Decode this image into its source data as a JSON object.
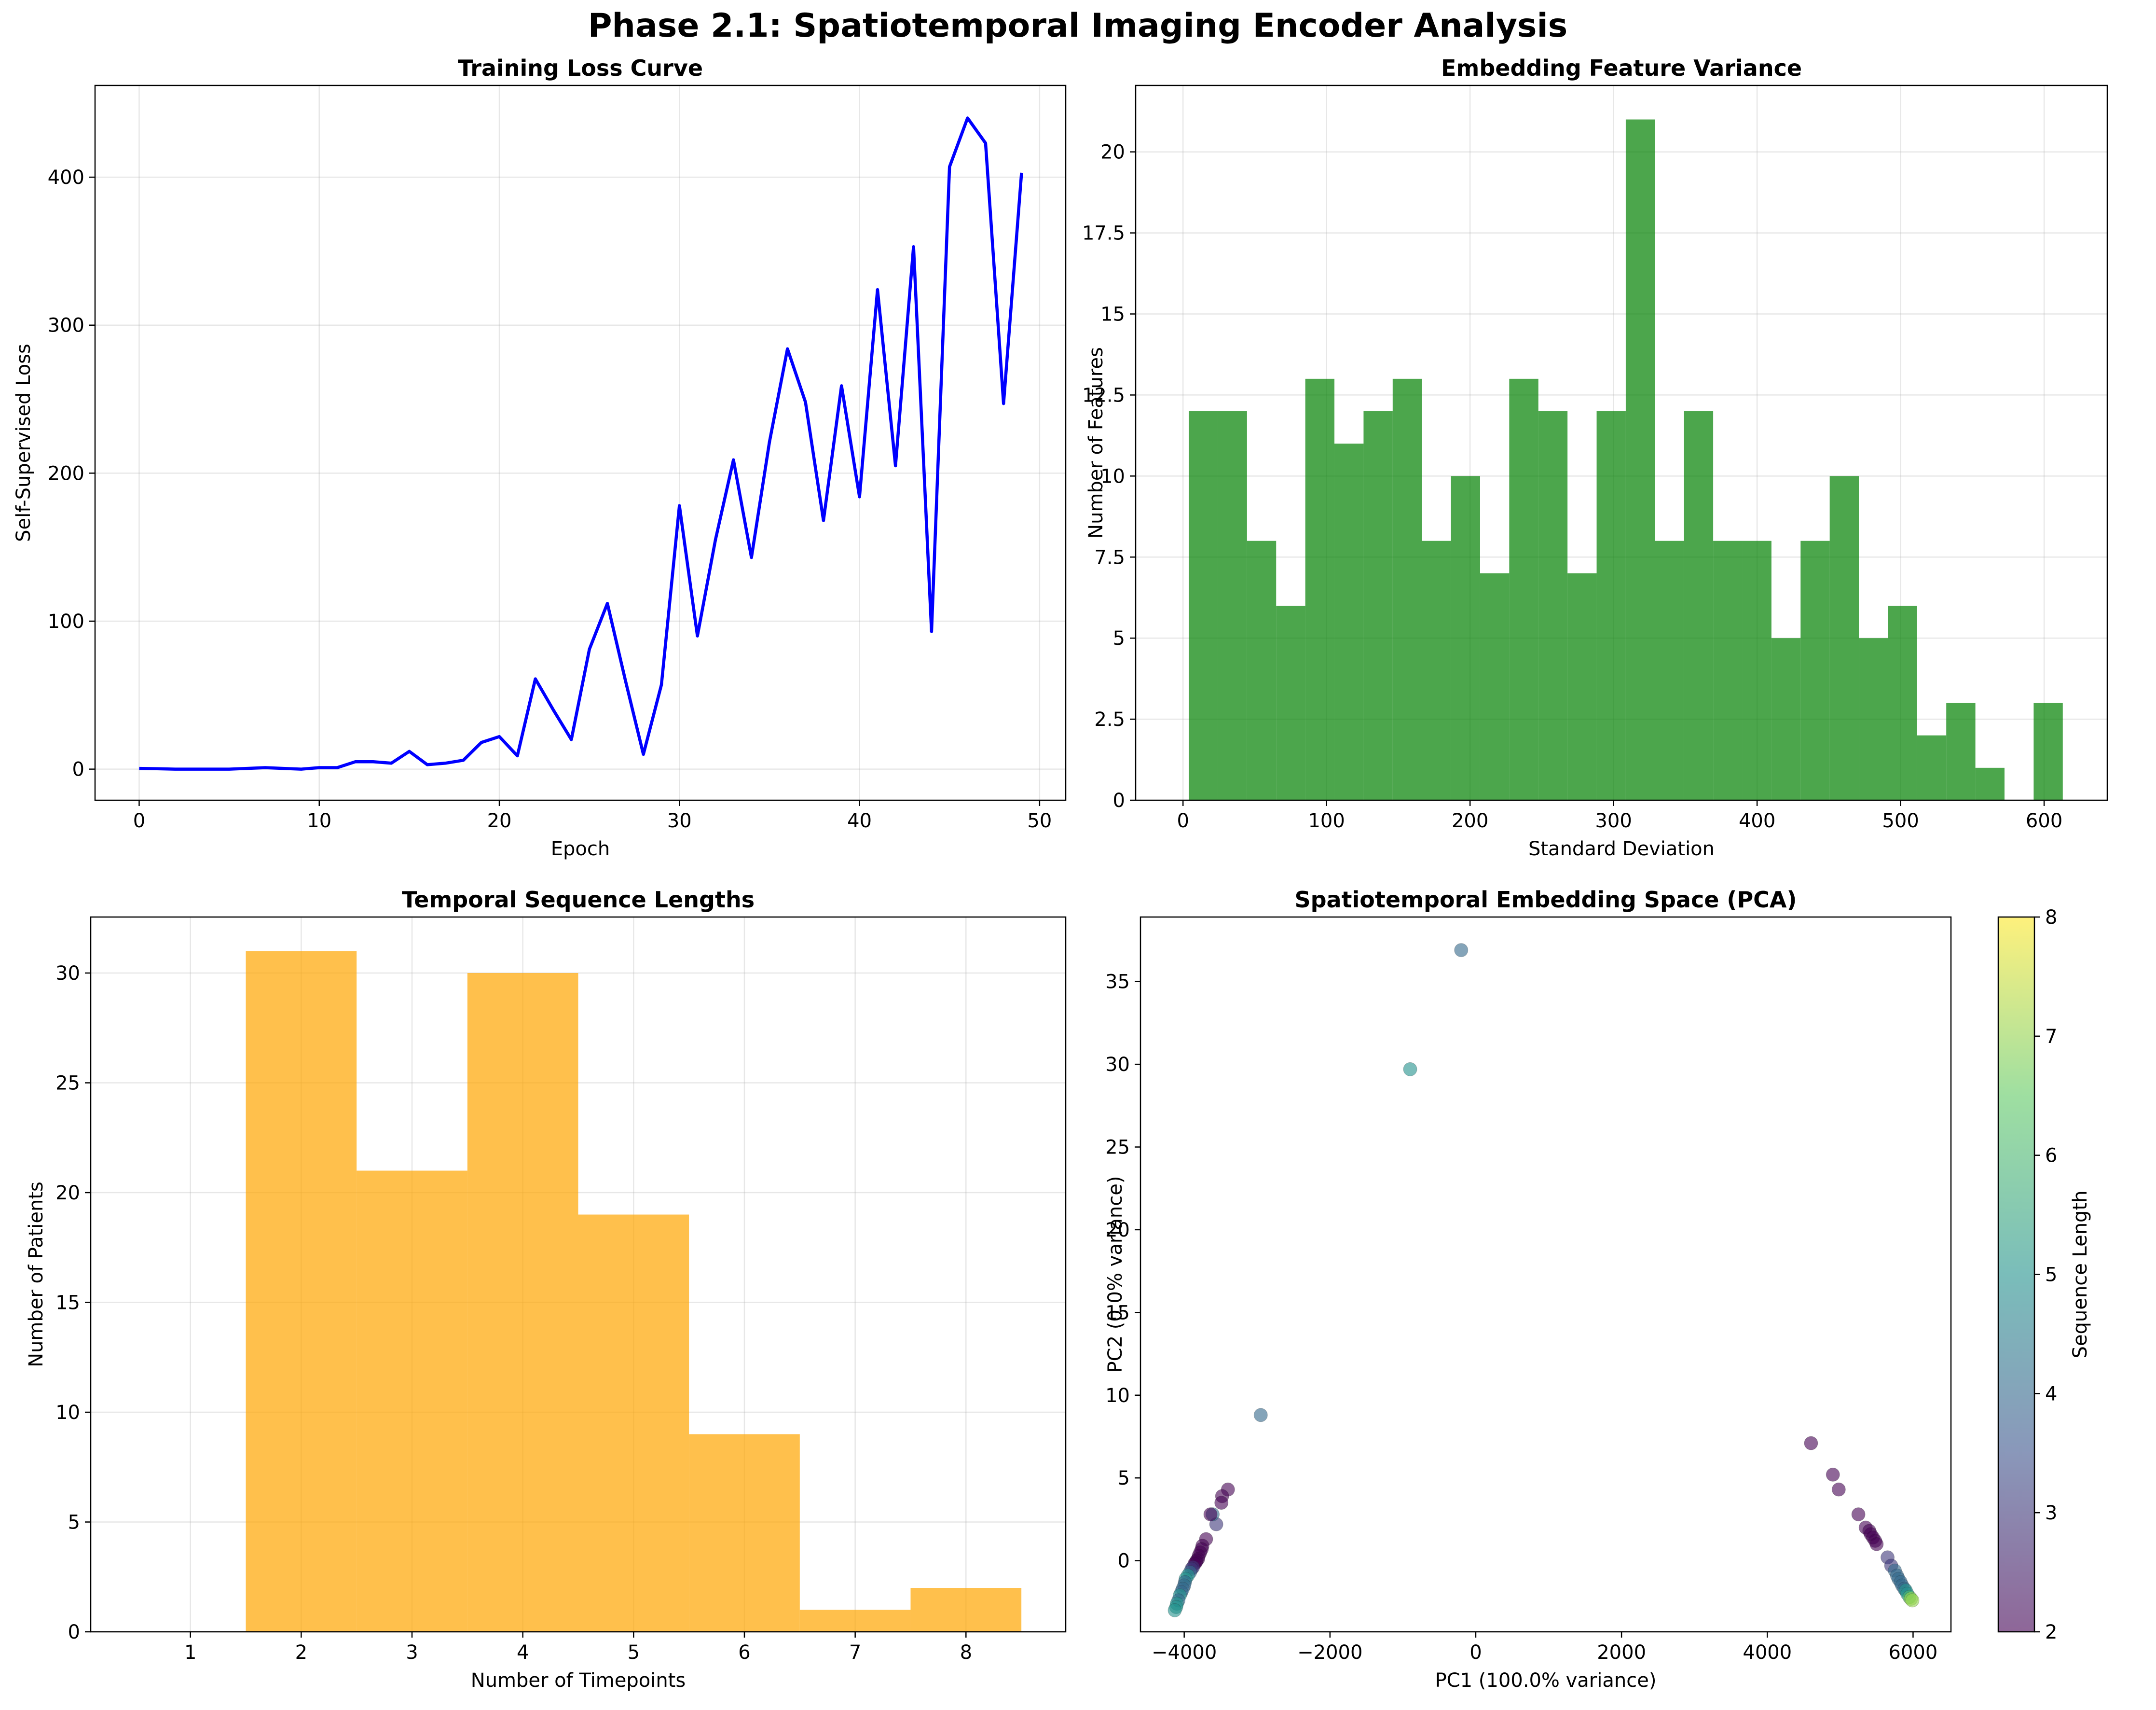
{
  "figure": {
    "suptitle": "Phase 2.1: Spatiotemporal Imaging Encoder Analysis"
  },
  "chart_data": [
    {
      "id": "loss",
      "type": "line",
      "title": "Training Loss Curve",
      "xlabel": "Epoch",
      "ylabel": "Self-Supervised Loss",
      "xlim": [
        -2.45,
        51.45
      ],
      "ylim": [
        -21,
        462
      ],
      "xticks": [
        0,
        10,
        20,
        30,
        40,
        50
      ],
      "yticks": [
        0,
        100,
        200,
        300,
        400
      ],
      "grid": true,
      "color": "#0000ff",
      "x": [
        0,
        1,
        2,
        3,
        4,
        5,
        6,
        7,
        8,
        9,
        10,
        11,
        12,
        13,
        14,
        15,
        16,
        17,
        18,
        19,
        20,
        21,
        22,
        23,
        24,
        25,
        26,
        27,
        28,
        29,
        30,
        31,
        32,
        33,
        34,
        35,
        36,
        37,
        38,
        39,
        40,
        41,
        42,
        43,
        44,
        45,
        46,
        47,
        48,
        49
      ],
      "y": [
        0.5,
        0.3,
        0,
        0,
        0,
        0,
        0.5,
        1,
        0.5,
        0,
        1,
        1,
        5,
        5,
        4,
        12,
        3,
        4,
        6,
        18,
        22,
        9,
        61,
        40,
        20,
        81,
        112,
        60,
        10,
        57,
        178,
        90,
        155,
        209,
        143,
        221,
        284,
        248,
        168,
        259,
        184,
        324,
        205,
        353,
        93,
        407,
        440,
        423,
        247,
        403
      ]
    },
    {
      "id": "variance",
      "type": "bar",
      "title": "Embedding Feature Variance",
      "xlabel": "Standard Deviation",
      "ylabel": "Number of Features",
      "xlim": [
        -33,
        644
      ],
      "ylim": [
        0,
        22.05
      ],
      "xticks": [
        0,
        100,
        200,
        300,
        400,
        500,
        600
      ],
      "yticks": [
        0.0,
        2.5,
        5.0,
        7.5,
        10.0,
        12.5,
        15.0,
        17.5,
        20.0
      ],
      "grid": true,
      "color": "#008000",
      "bin_edges": [
        4,
        24.3,
        44.6,
        64.9,
        85.2,
        105.5,
        125.8,
        146.1,
        166.4,
        186.7,
        207,
        227.3,
        247.6,
        267.9,
        288.2,
        308.5,
        328.8,
        349.1,
        369.4,
        389.7,
        410,
        430.3,
        450.6,
        470.9,
        491.2,
        511.5,
        531.8,
        552.1,
        572.4,
        592.7,
        613
      ],
      "counts": [
        12,
        12,
        8,
        6,
        13,
        11,
        12,
        13,
        8,
        10,
        7,
        13,
        12,
        7,
        12,
        21,
        8,
        12,
        8,
        8,
        5,
        8,
        10,
        5,
        6,
        2,
        3,
        1,
        0,
        3
      ]
    },
    {
      "id": "lengths",
      "type": "bar",
      "title": "Temporal Sequence Lengths",
      "xlabel": "Number of Timepoints",
      "ylabel": "Number of Patients",
      "xlim": [
        0.1,
        8.9
      ],
      "ylim": [
        0,
        32.55
      ],
      "xticks": [
        1,
        2,
        3,
        4,
        5,
        6,
        7,
        8
      ],
      "yticks": [
        0,
        5,
        10,
        15,
        20,
        25,
        30
      ],
      "grid": true,
      "color": "#ffa500",
      "bin_edges": [
        1.5,
        2.5,
        3.5,
        4.5,
        5.5,
        6.5,
        7.5,
        8.5
      ],
      "counts": [
        31,
        21,
        30,
        19,
        9,
        1,
        2
      ]
    },
    {
      "id": "pca",
      "type": "scatter",
      "title": "Spatiotemporal Embedding Space (PCA)",
      "xlabel": "PC1 (100.0% variance)",
      "ylabel": "PC2 (0.0% variance)",
      "xlim": [
        -4600,
        6520
      ],
      "ylim": [
        -4.3,
        38.9
      ],
      "xticks": [
        -4000,
        -2000,
        0,
        2000,
        4000,
        6000
      ],
      "yticks": [
        0,
        5,
        10,
        15,
        20,
        25,
        30,
        35
      ],
      "grid": false,
      "colorbar": {
        "label": "Sequence Length",
        "min": 2,
        "max": 8,
        "ticks": [
          2,
          3,
          4,
          5,
          6,
          7,
          8
        ],
        "colormap": "viridis"
      },
      "points": [
        [
          -200,
          36.9,
          4
        ],
        [
          -900,
          29.7,
          5
        ],
        [
          -2950,
          8.8,
          4
        ],
        [
          -3400,
          4.3,
          2
        ],
        [
          -3480,
          3.9,
          2
        ],
        [
          -3490,
          3.5,
          2
        ],
        [
          -3560,
          2.2,
          3
        ],
        [
          -3610,
          2.8,
          4
        ],
        [
          -3640,
          2.8,
          2
        ],
        [
          -3700,
          1.3,
          2
        ],
        [
          -3750,
          0.9,
          2
        ],
        [
          -3760,
          0.7,
          2
        ],
        [
          -3780,
          0.5,
          2
        ],
        [
          -3800,
          0.3,
          2
        ],
        [
          -3810,
          0.1,
          2
        ],
        [
          -3830,
          0,
          2
        ],
        [
          -3840,
          -0.1,
          2
        ],
        [
          -3860,
          -0.2,
          2
        ],
        [
          -3880,
          -0.4,
          3
        ],
        [
          -3900,
          -0.5,
          3
        ],
        [
          -3920,
          -0.7,
          4
        ],
        [
          -3950,
          -0.9,
          5
        ],
        [
          -3980,
          -1.1,
          5
        ],
        [
          -3990,
          -1.3,
          4
        ],
        [
          -4000,
          -1.5,
          4
        ],
        [
          -4020,
          -1.7,
          4
        ],
        [
          -4040,
          -1.9,
          4
        ],
        [
          -4060,
          -2.1,
          5
        ],
        [
          -4080,
          -2.4,
          4
        ],
        [
          -4100,
          -2.6,
          5
        ],
        [
          -4110,
          -2.8,
          5
        ],
        [
          -4130,
          -3.0,
          5
        ],
        [
          4600,
          7.1,
          2
        ],
        [
          4900,
          5.2,
          2
        ],
        [
          4980,
          4.3,
          2
        ],
        [
          5250,
          2.8,
          2
        ],
        [
          5350,
          2.0,
          2
        ],
        [
          5400,
          1.8,
          2
        ],
        [
          5420,
          1.6,
          2
        ],
        [
          5450,
          1.4,
          2
        ],
        [
          5480,
          1.2,
          2
        ],
        [
          5500,
          1.0,
          2
        ],
        [
          5650,
          0.2,
          3
        ],
        [
          5700,
          -0.3,
          3
        ],
        [
          5750,
          -0.6,
          4
        ],
        [
          5780,
          -0.9,
          4
        ],
        [
          5800,
          -1.1,
          4
        ],
        [
          5830,
          -1.3,
          4
        ],
        [
          5850,
          -1.5,
          4
        ],
        [
          5880,
          -1.7,
          4
        ],
        [
          5900,
          -1.8,
          5
        ],
        [
          5920,
          -2.0,
          5
        ],
        [
          5950,
          -2.2,
          6
        ],
        [
          5970,
          -2.3,
          7
        ],
        [
          5990,
          -2.4,
          7
        ]
      ]
    }
  ]
}
